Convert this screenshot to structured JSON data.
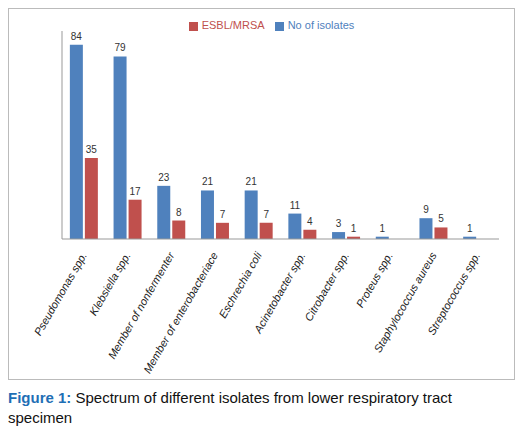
{
  "chart_data": {
    "type": "bar",
    "caption": "Figure 1: Spectrum of different isolates from lower respiratory tract specimen",
    "categories": [
      "Pseudomonas spp.",
      "Klebsiella spp.",
      "Member of nonfermenter",
      "Member of enterobacteriace",
      "Eschrechia coli",
      "Acinetobacter spp.",
      "Citrobacter spp.",
      "Proteus spp.",
      "Staphylococcus aureus",
      "Streptococcus spp."
    ],
    "series": [
      {
        "name": "No of isolates",
        "color": "#4f81bd",
        "values": [
          84,
          79,
          23,
          21,
          21,
          11,
          3,
          1,
          9,
          1
        ]
      },
      {
        "name": "ESBL/MRSA",
        "color": "#c0504d",
        "values": [
          35,
          17,
          8,
          7,
          7,
          4,
          1,
          null,
          5,
          null
        ]
      }
    ],
    "ylim": [
      0,
      90
    ],
    "tick_labels": "x",
    "data_labels": true,
    "legend": "top",
    "grid": false
  }
}
